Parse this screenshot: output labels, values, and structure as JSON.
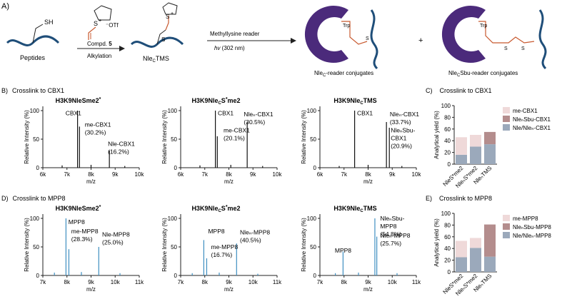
{
  "scheme": {
    "panel_label": "A)",
    "peptides_label": "Peptides",
    "sh_label": "SH",
    "reagent": {
      "sulfonium": "S",
      "plus": "+",
      "counterion": "⁻OTf",
      "name_prefix": "Compd. ",
      "name_number": "5"
    },
    "step1_label": "Alkylation",
    "intermediate_label_a": "Nle",
    "intermediate_label_sub": "C",
    "intermediate_label_b": "TMS",
    "intermediate_s": "S",
    "intermediate_s2": "S",
    "intermediate_plus": "+",
    "step2_top": "Methyllysine reader",
    "step2_hv": "hv",
    "step2_wavelength": " (302 nm)",
    "product1": {
      "a": "Nle",
      "sub": "C",
      "b": "-reader conjugates",
      "trp": "Trp",
      "s": "S"
    },
    "plus_sign": "+",
    "product2": {
      "a": "Nle",
      "sub": "C",
      "b": "Sbu-reader conjugates",
      "trp": "Trp",
      "s1": "S",
      "s2": "S"
    },
    "colors": {
      "reader": "#4b2a7b",
      "linker": "#c8592f",
      "peptide": "#1f4e79"
    }
  },
  "panels": {
    "B": {
      "label": "B)",
      "title": "Crosslink to CBX1"
    },
    "C": {
      "label": "C)",
      "title": "Crosslink to CBX1"
    },
    "D": {
      "label": "D)",
      "title": "Crosslink to MPP8"
    },
    "E": {
      "label": "E)",
      "title": "Crosslink to MPP8"
    }
  },
  "spectra_common": {
    "ylabel": "Relative Intensity (%)",
    "xlabel": "m/z",
    "yticks": [
      "0",
      "50",
      "100"
    ]
  },
  "spectra": [
    {
      "title_a": "H3K9NleS",
      "title_star": "*",
      "title_b": "me2",
      "xticks": [
        "6k",
        "7k",
        "8k",
        "9k",
        "10k"
      ],
      "color": "#111111",
      "labels": [
        {
          "lines": [
            "CBX1"
          ]
        },
        {
          "lines": [
            "me-CBX1",
            "(30.2%)"
          ]
        },
        {
          "lines": [
            "Nle-CBX1",
            "(16.2%)"
          ]
        }
      ]
    },
    {
      "title_a": "H3K9Nle",
      "title_sub": "C",
      "title_b": "S",
      "title_star": "*",
      "title_c": "me2",
      "xticks": [
        "6k",
        "7k",
        "8k",
        "9k",
        "10k"
      ],
      "color": "#111111",
      "labels": [
        {
          "lines": [
            "CBX1"
          ]
        },
        {
          "lines": [
            "me-CBX1",
            "(20.1%)"
          ]
        },
        {
          "lines": [
            "Nleₙ-CBX1",
            "(30.5%)"
          ]
        }
      ]
    },
    {
      "title_a": "H3K9Nle",
      "title_sub": "C",
      "title_b": "TMS",
      "xticks": [
        "6k",
        "7k",
        "8k",
        "9k",
        "10k"
      ],
      "color": "#111111",
      "labels": [
        {
          "lines": [
            "CBX1"
          ]
        },
        {
          "lines": [
            "Nleₙ-CBX1",
            "(33.7%)"
          ]
        },
        {
          "lines": [
            "NleₙSbu-",
            "CBX1",
            "(20.9%)"
          ]
        }
      ]
    },
    {
      "title_a": "H3K9NleS",
      "title_star": "*",
      "title_b": "me2",
      "xticks": [
        "7k",
        "8k",
        "9k",
        "10k",
        "11k"
      ],
      "color": "#3f8fc1",
      "labels": [
        {
          "lines": [
            "MPP8"
          ]
        },
        {
          "lines": [
            "me-MPP8",
            "(28.3%)"
          ]
        },
        {
          "lines": [
            "Nle-MPP8",
            "(25.0%)"
          ]
        }
      ]
    },
    {
      "title_a": "H3K9Nle",
      "title_sub": "C",
      "title_b": "S",
      "title_star": "*",
      "title_c": "me2",
      "xticks": [
        "7k",
        "8k",
        "9k",
        "10k",
        "11k"
      ],
      "color": "#3f8fc1",
      "labels": [
        {
          "lines": [
            "MPP8"
          ]
        },
        {
          "lines": [
            "me-MPP8",
            "(16.7%)"
          ]
        },
        {
          "lines": [
            "Nleₙ-MPP8",
            "(40.5%)"
          ]
        }
      ]
    },
    {
      "title_a": "H3K9Nle",
      "title_sub": "C",
      "title_b": "TMS",
      "xticks": [
        "7k",
        "8k",
        "9k",
        "10k",
        "11k"
      ],
      "color": "#3f8fc1",
      "labels": [
        {
          "lines": [
            "MPP8"
          ]
        },
        {
          "lines": [
            "NleₙSbu-",
            "MPP8",
            "(54.8%)"
          ]
        },
        {
          "lines": [
            "Nleₙ-MPP8",
            "(25.7%)"
          ]
        }
      ]
    }
  ],
  "chart_data": [
    {
      "type": "bar",
      "title": "Crosslink to CBX1",
      "ylabel": "Analytical yield (%)",
      "ylim": [
        0,
        100
      ],
      "yticks": [
        0,
        20,
        40,
        60,
        80,
        100
      ],
      "categories": [
        "NleS*me2",
        "NleₙS*me2",
        "NleₙTMS"
      ],
      "stacked": true,
      "series": [
        {
          "name": "Nle/Nleₙ-CBX1",
          "values": [
            16,
            30,
            34
          ],
          "color": "#9ba9bb"
        },
        {
          "name": "NleₙSbu-CBX1",
          "values": [
            0,
            0,
            21
          ],
          "color": "#b48d8d"
        },
        {
          "name": "me-CBX1",
          "values": [
            30,
            20,
            0
          ],
          "color": "#efd9d9"
        }
      ],
      "legend": "right"
    },
    {
      "type": "bar",
      "title": "Crosslink to MPP8",
      "ylabel": "Analytical yield (%)",
      "ylim": [
        0,
        100
      ],
      "yticks": [
        0,
        20,
        40,
        60,
        80,
        100
      ],
      "categories": [
        "NleS*me2",
        "NleₙS*me2",
        "NleₙTMS"
      ],
      "stacked": true,
      "series": [
        {
          "name": "Nle/Nleₙ-MPP8",
          "values": [
            25,
            41,
            26
          ],
          "color": "#9ba9bb"
        },
        {
          "name": "NleₙSbu-MPP8",
          "values": [
            0,
            0,
            55
          ],
          "color": "#b48d8d"
        },
        {
          "name": "me-MPP8",
          "values": [
            28,
            17,
            0
          ],
          "color": "#efd9d9"
        }
      ],
      "legend": "right"
    }
  ]
}
